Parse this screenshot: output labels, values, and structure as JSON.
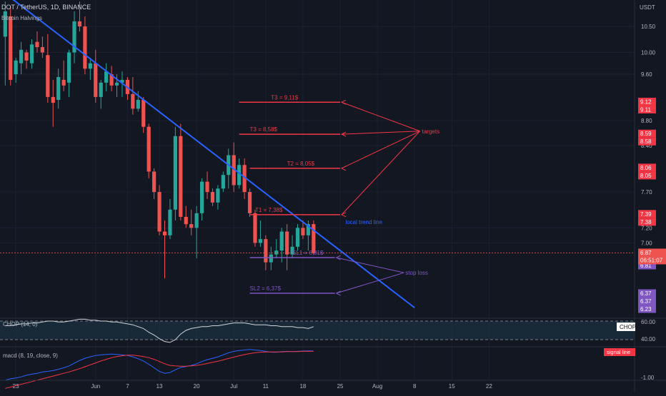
{
  "header": {
    "symbol_line": "DOT / TetherUS, 1D, BINANCE",
    "indicator": "Bitcoin Halvings",
    "currency": "USDT"
  },
  "colors": {
    "background": "#131722",
    "up": "#26a69a",
    "down": "#ef5350",
    "trend": "#2962ff",
    "target": "#f23645",
    "stop": "#7e57c2",
    "text": "#b2b5be"
  },
  "chart_data": {
    "type": "candlestick",
    "yaxis": {
      "scale": "log",
      "ticks": [
        "10.50",
        "10.00",
        "9.60",
        "8.80",
        "8.40",
        "7.70",
        "7.20",
        "7.00"
      ]
    },
    "xaxis": {
      "ticks": [
        "23",
        "Jun",
        "7",
        "13",
        "20",
        "Jul",
        "11",
        "18",
        "25",
        "Aug",
        "8",
        "15",
        "22"
      ]
    },
    "candles": [
      {
        "o": 10.3,
        "h": 11.0,
        "l": 9.4,
        "c": 10.8
      },
      {
        "o": 10.7,
        "h": 10.9,
        "l": 9.4,
        "c": 9.5
      },
      {
        "o": 9.6,
        "h": 9.9,
        "l": 9.45,
        "c": 9.85
      },
      {
        "o": 9.8,
        "h": 10.2,
        "l": 9.6,
        "c": 10.05
      },
      {
        "o": 10.0,
        "h": 10.05,
        "l": 9.7,
        "c": 9.85
      },
      {
        "o": 9.8,
        "h": 10.25,
        "l": 9.7,
        "c": 10.15
      },
      {
        "o": 10.2,
        "h": 10.4,
        "l": 10.0,
        "c": 10.1
      },
      {
        "o": 10.1,
        "h": 10.3,
        "l": 9.9,
        "c": 10.0
      },
      {
        "o": 9.95,
        "h": 10.35,
        "l": 9.1,
        "c": 9.2
      },
      {
        "o": 9.2,
        "h": 9.5,
        "l": 8.7,
        "c": 9.1
      },
      {
        "o": 9.15,
        "h": 9.7,
        "l": 9.0,
        "c": 9.55
      },
      {
        "o": 9.5,
        "h": 9.85,
        "l": 9.3,
        "c": 9.4
      },
      {
        "o": 9.45,
        "h": 10.05,
        "l": 9.2,
        "c": 10.0
      },
      {
        "o": 10.0,
        "h": 10.8,
        "l": 9.8,
        "c": 10.6
      },
      {
        "o": 10.6,
        "h": 11.0,
        "l": 10.4,
        "c": 10.5
      },
      {
        "o": 10.5,
        "h": 10.7,
        "l": 9.6,
        "c": 9.7
      },
      {
        "o": 9.7,
        "h": 9.9,
        "l": 9.5,
        "c": 9.8
      },
      {
        "o": 9.8,
        "h": 10.05,
        "l": 9.1,
        "c": 9.2
      },
      {
        "o": 9.2,
        "h": 9.5,
        "l": 9.0,
        "c": 9.45
      },
      {
        "o": 9.45,
        "h": 9.8,
        "l": 9.3,
        "c": 9.65
      },
      {
        "o": 9.6,
        "h": 9.75,
        "l": 9.3,
        "c": 9.4
      },
      {
        "o": 9.4,
        "h": 9.6,
        "l": 9.2,
        "c": 9.45
      },
      {
        "o": 9.45,
        "h": 9.65,
        "l": 9.2,
        "c": 9.5
      },
      {
        "o": 9.5,
        "h": 9.55,
        "l": 9.15,
        "c": 9.25
      },
      {
        "o": 9.25,
        "h": 9.55,
        "l": 8.9,
        "c": 9.0
      },
      {
        "o": 9.0,
        "h": 9.3,
        "l": 8.95,
        "c": 9.15
      },
      {
        "o": 9.15,
        "h": 9.2,
        "l": 8.6,
        "c": 8.7
      },
      {
        "o": 8.7,
        "h": 8.75,
        "l": 7.9,
        "c": 8.0
      },
      {
        "o": 8.0,
        "h": 8.05,
        "l": 7.6,
        "c": 7.7
      },
      {
        "o": 7.7,
        "h": 7.8,
        "l": 7.1,
        "c": 7.15
      },
      {
        "o": 7.15,
        "h": 7.3,
        "l": 6.55,
        "c": 7.1
      },
      {
        "o": 7.1,
        "h": 7.6,
        "l": 7.05,
        "c": 7.45
      },
      {
        "o": 7.45,
        "h": 8.7,
        "l": 7.3,
        "c": 8.55
      },
      {
        "o": 8.55,
        "h": 8.75,
        "l": 7.3,
        "c": 7.35
      },
      {
        "o": 7.35,
        "h": 7.5,
        "l": 7.2,
        "c": 7.25
      },
      {
        "o": 7.25,
        "h": 7.45,
        "l": 7.1,
        "c": 7.2
      },
      {
        "o": 7.2,
        "h": 7.5,
        "l": 6.8,
        "c": 7.4
      },
      {
        "o": 7.4,
        "h": 7.9,
        "l": 7.3,
        "c": 7.85
      },
      {
        "o": 7.85,
        "h": 8.0,
        "l": 7.6,
        "c": 7.7
      },
      {
        "o": 7.7,
        "h": 7.75,
        "l": 7.5,
        "c": 7.55
      },
      {
        "o": 7.55,
        "h": 7.8,
        "l": 7.45,
        "c": 7.75
      },
      {
        "o": 7.75,
        "h": 8.0,
        "l": 7.7,
        "c": 7.95
      },
      {
        "o": 7.95,
        "h": 8.35,
        "l": 7.75,
        "c": 8.25
      },
      {
        "o": 8.25,
        "h": 8.45,
        "l": 7.7,
        "c": 7.8
      },
      {
        "o": 7.8,
        "h": 8.2,
        "l": 7.75,
        "c": 8.1
      },
      {
        "o": 8.1,
        "h": 8.2,
        "l": 7.6,
        "c": 7.7
      },
      {
        "o": 7.7,
        "h": 7.75,
        "l": 7.35,
        "c": 7.4
      },
      {
        "o": 7.4,
        "h": 7.45,
        "l": 6.95,
        "c": 7.0
      },
      {
        "o": 7.0,
        "h": 7.3,
        "l": 6.95,
        "c": 7.05
      },
      {
        "o": 7.05,
        "h": 7.1,
        "l": 6.65,
        "c": 6.75
      },
      {
        "o": 6.75,
        "h": 6.95,
        "l": 6.65,
        "c": 6.85
      },
      {
        "o": 6.85,
        "h": 7.05,
        "l": 6.8,
        "c": 6.9
      },
      {
        "o": 6.9,
        "h": 7.2,
        "l": 6.75,
        "c": 7.15
      },
      {
        "o": 7.15,
        "h": 7.25,
        "l": 6.65,
        "c": 6.85
      },
      {
        "o": 6.85,
        "h": 7.1,
        "l": 6.8,
        "c": 6.95
      },
      {
        "o": 6.95,
        "h": 7.25,
        "l": 6.9,
        "c": 7.2
      },
      {
        "o": 7.2,
        "h": 7.3,
        "l": 7.05,
        "c": 7.1
      },
      {
        "o": 7.1,
        "h": 7.3,
        "l": 6.9,
        "c": 7.25
      },
      {
        "o": 7.25,
        "h": 7.3,
        "l": 6.85,
        "c": 6.87
      }
    ],
    "trendline": {
      "from": {
        "i": -5,
        "v": 11.6
      },
      "to": {
        "i": 77,
        "v": 6.2
      },
      "label": "local trend line"
    },
    "lines": [
      {
        "name": "T3 9.11",
        "type": "target",
        "v": 9.11,
        "label": "T3 = 9,11$",
        "start": 44,
        "end": 63,
        "label_pos": 50
      },
      {
        "name": "T3 8.58",
        "type": "target",
        "v": 8.58,
        "label": "T3 = 8,58$",
        "start": 44,
        "end": 63,
        "label_pos": 46
      },
      {
        "name": "T2 8.05",
        "type": "target",
        "v": 8.05,
        "label": "T2 = 8,05$",
        "start": 46,
        "end": 63,
        "label_pos": 53
      },
      {
        "name": "T1 7.38",
        "type": "target",
        "v": 7.38,
        "label": "T1 = 7,38$",
        "start": 46,
        "end": 63,
        "label_pos": 47
      },
      {
        "name": "SL1 6.81",
        "type": "stop",
        "v": 6.81,
        "label": "SL1 = 6,81$",
        "start": 46,
        "end": 62,
        "label_pos": 54
      },
      {
        "name": "SL2 6.37",
        "type": "stop",
        "v": 6.37,
        "label": "SL2 = 6,37$",
        "start": 46,
        "end": 62,
        "label_pos": 46
      }
    ],
    "annotations": {
      "targets": "targets",
      "stop_loss": "stop loss"
    },
    "price_tags": [
      {
        "v": 9.12,
        "text": "9.12",
        "kind": "target"
      },
      {
        "v": 9.11,
        "text": "9.11",
        "kind": "target"
      },
      {
        "v": 8.59,
        "text": "8.59",
        "kind": "target"
      },
      {
        "v": 8.58,
        "text": "8.58",
        "kind": "target"
      },
      {
        "v": 8.06,
        "text": "8.06",
        "kind": "target"
      },
      {
        "v": 8.05,
        "text": "8.05",
        "kind": "target"
      },
      {
        "v": 7.39,
        "text": "7.39",
        "kind": "target"
      },
      {
        "v": 7.38,
        "text": "7.38",
        "kind": "target"
      },
      {
        "v": 6.81,
        "text": "6.81",
        "kind": "stop"
      },
      {
        "v": 6.81,
        "text": "6.81",
        "kind": "stop"
      },
      {
        "v": 6.37,
        "text": "6.37",
        "kind": "stop"
      },
      {
        "v": 6.37,
        "text": "6.37",
        "kind": "stop"
      },
      {
        "v": 6.23,
        "text": "6.23",
        "kind": "stop"
      }
    ],
    "last_price": {
      "value": 6.87,
      "text": "6.87",
      "countdown": "06:51:07"
    },
    "chop": {
      "label": "CHOP (14, 0)",
      "tag": "CHOP",
      "ticks": [
        "60.00",
        "40.00"
      ],
      "values": [
        55,
        55,
        56,
        57,
        57,
        58,
        58,
        59,
        60,
        60,
        59,
        59,
        60,
        61,
        62,
        62,
        61,
        61,
        60,
        60,
        59,
        59,
        58,
        57,
        56,
        54,
        52,
        48,
        45,
        41,
        38,
        37,
        40,
        46,
        50,
        52,
        53,
        54,
        54,
        55,
        55,
        56,
        57,
        58,
        58,
        58,
        57,
        56,
        56,
        56,
        55,
        55,
        54,
        54,
        54,
        53,
        53,
        52,
        54
      ]
    },
    "macd": {
      "label": "macd (8, 19, close, 9)",
      "tag": "signal line",
      "ticks": [
        "-1.00"
      ],
      "macd_values": [
        -1.1,
        -1.05,
        -1.02,
        -0.98,
        -0.92,
        -0.88,
        -0.85,
        -0.8,
        -0.78,
        -0.75,
        -0.7,
        -0.65,
        -0.58,
        -0.48,
        -0.38,
        -0.3,
        -0.25,
        -0.2,
        -0.18,
        -0.16,
        -0.15,
        -0.16,
        -0.18,
        -0.2,
        -0.25,
        -0.32,
        -0.4,
        -0.52,
        -0.65,
        -0.78,
        -0.85,
        -0.82,
        -0.72,
        -0.64,
        -0.6,
        -0.56,
        -0.5,
        -0.42,
        -0.35,
        -0.3,
        -0.25,
        -0.18,
        -0.1,
        -0.05,
        -0.02,
        0.0,
        0.02,
        0.0,
        -0.02,
        -0.05,
        -0.08,
        -0.08,
        -0.06,
        -0.05,
        -0.06,
        -0.05,
        -0.04,
        -0.03,
        -0.04
      ],
      "signal_values": [
        -1.4,
        -1.35,
        -1.3,
        -1.25,
        -1.2,
        -1.15,
        -1.1,
        -1.05,
        -1.0,
        -0.95,
        -0.9,
        -0.85,
        -0.8,
        -0.74,
        -0.68,
        -0.61,
        -0.54,
        -0.47,
        -0.4,
        -0.34,
        -0.28,
        -0.24,
        -0.21,
        -0.19,
        -0.19,
        -0.21,
        -0.24,
        -0.28,
        -0.34,
        -0.42,
        -0.5,
        -0.56,
        -0.58,
        -0.59,
        -0.59,
        -0.58,
        -0.56,
        -0.53,
        -0.49,
        -0.45,
        -0.41,
        -0.36,
        -0.31,
        -0.26,
        -0.21,
        -0.17,
        -0.13,
        -0.1,
        -0.08,
        -0.07,
        -0.07,
        -0.07,
        -0.07,
        -0.06,
        -0.06,
        -0.06,
        -0.05,
        -0.05,
        -0.05
      ]
    }
  }
}
